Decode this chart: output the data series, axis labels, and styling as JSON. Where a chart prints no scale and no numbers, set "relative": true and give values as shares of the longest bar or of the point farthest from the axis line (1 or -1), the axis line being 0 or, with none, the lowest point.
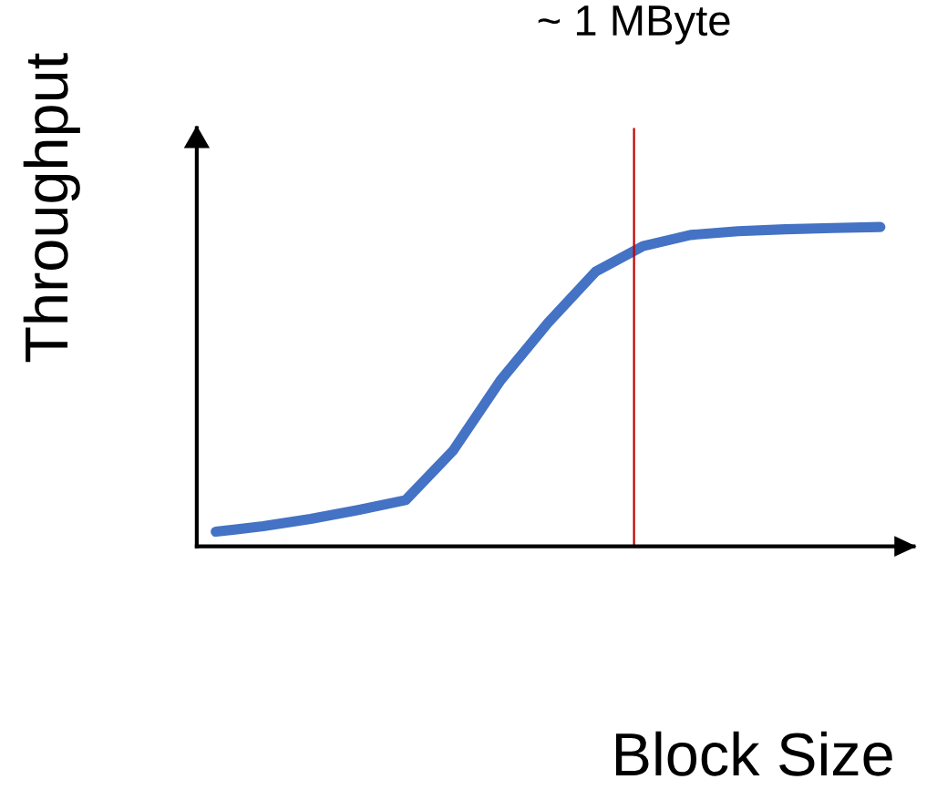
{
  "chart_data": {
    "type": "line",
    "relative": true,
    "xlabel": "Block Size",
    "ylabel": "Throughput",
    "categories": [
      null,
      null,
      null,
      null,
      null,
      null,
      null,
      null,
      null,
      null,
      null,
      null,
      null,
      null,
      null
    ],
    "series": [
      {
        "color": "#4472c4",
        "values": [
          0.046,
          0.063,
          0.086,
          0.114,
          0.145,
          0.3,
          0.52,
          0.7,
          0.86,
          0.94,
          0.975,
          0.987,
          0.993,
          0.997,
          1.0
        ]
      }
    ],
    "annotations": [
      "~ 1 MByte"
    ],
    "tick_labels": false,
    "legend": false,
    "marker": "none",
    "line_style": "solid"
  }
}
